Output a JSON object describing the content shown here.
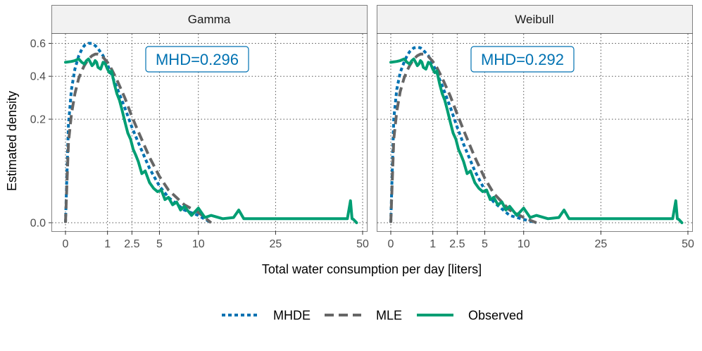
{
  "chart_data": {
    "type": "line",
    "xlabel": "Total water consumption per day [liters]",
    "ylabel": "Estimated density",
    "x_scale": "sqrt",
    "y_scale": "sqrt",
    "xlim": [
      0,
      50
    ],
    "ylim": [
      0,
      0.62
    ],
    "x_ticks": [
      0,
      1,
      2.5,
      5,
      10,
      25,
      50
    ],
    "x_tick_labels": [
      "0",
      "1",
      "2.5",
      "5",
      "10",
      "25",
      "50"
    ],
    "y_ticks": [
      0,
      0.2,
      0.4,
      0.6
    ],
    "y_tick_labels": [
      "0.0",
      "0.2",
      "0.4",
      "0.6"
    ],
    "grid": true,
    "legend_position": "bottom",
    "legend": [
      {
        "key": "mhde",
        "label": "MHDE",
        "color": "#0072B2",
        "dash": "dotted"
      },
      {
        "key": "mle",
        "label": "MLE",
        "color": "#666666",
        "dash": "dashed"
      },
      {
        "key": "obs",
        "label": "Observed",
        "color": "#009E73",
        "dash": "solid"
      }
    ],
    "panels": [
      {
        "title": "Gamma",
        "annotation": "MHD=0.296",
        "annotation_color": "#0072B2",
        "series": [
          {
            "key": "mhde",
            "name": "MHDE",
            "x": [
              0,
              0.005,
              0.02,
              0.05,
              0.1,
              0.15,
              0.2,
              0.3,
              0.4,
              0.5,
              0.6,
              0.8,
              1,
              1.2,
              1.5,
              2,
              2.5,
              3,
              4,
              5,
              6,
              8,
              10,
              12
            ],
            "y": [
              0,
              0.18,
              0.33,
              0.44,
              0.52,
              0.56,
              0.585,
              0.6,
              0.6,
              0.585,
              0.565,
              0.52,
              0.465,
              0.41,
              0.34,
              0.245,
              0.17,
              0.12,
              0.055,
              0.025,
              0.012,
              0.003,
              0.001,
              0
            ]
          },
          {
            "key": "mle",
            "name": "MLE",
            "x": [
              0,
              0.005,
              0.02,
              0.05,
              0.1,
              0.15,
              0.2,
              0.3,
              0.4,
              0.5,
              0.6,
              0.8,
              1,
              1.2,
              1.5,
              2,
              2.5,
              3,
              4,
              5,
              6,
              8,
              10,
              12
            ],
            "y": [
              0,
              0.12,
              0.22,
              0.31,
              0.39,
              0.43,
              0.46,
              0.5,
              0.52,
              0.53,
              0.53,
              0.51,
              0.48,
              0.44,
              0.38,
              0.29,
              0.21,
              0.155,
              0.08,
              0.04,
              0.02,
              0.006,
              0.002,
              0
            ]
          },
          {
            "key": "obs",
            "name": "Observed",
            "x": [
              0,
              0.02,
              0.05,
              0.1,
              0.15,
              0.2,
              0.25,
              0.3,
              0.35,
              0.4,
              0.45,
              0.5,
              0.55,
              0.6,
              0.7,
              0.8,
              0.9,
              1,
              1.1,
              1.2,
              1.35,
              1.5,
              1.65,
              1.8,
              2,
              2.2,
              2.4,
              2.6,
              2.8,
              3,
              3.3,
              3.6,
              4,
              4.4,
              4.8,
              5.2,
              5.6,
              6,
              6.5,
              7,
              7.5,
              8,
              9,
              10,
              11,
              12,
              14,
              16,
              17,
              18,
              20,
              25,
              30,
              35,
              40,
              45,
              46,
              46.5,
              47,
              48
            ],
            "y": [
              0.48,
              0.485,
              0.49,
              0.5,
              0.48,
              0.47,
              0.49,
              0.5,
              0.48,
              0.46,
              0.47,
              0.49,
              0.48,
              0.45,
              0.44,
              0.48,
              0.47,
              0.44,
              0.42,
              0.43,
              0.36,
              0.31,
              0.28,
              0.24,
              0.19,
              0.15,
              0.13,
              0.1,
              0.085,
              0.07,
              0.045,
              0.05,
              0.03,
              0.022,
              0.018,
              0.02,
              0.01,
              0.012,
              0.006,
              0.008,
              0.003,
              0.005,
              0.001,
              0.004,
              0.0005,
              0.001,
              0.0003,
              0.0005,
              0.003,
              0.0003,
              0.0003,
              0.0003,
              0.0003,
              0.0003,
              0.0003,
              0.0003,
              0.009,
              0.0003,
              0.0002,
              0
            ]
          }
        ]
      },
      {
        "title": "Weibull",
        "annotation": "MHD=0.292",
        "annotation_color": "#0072B2",
        "series": [
          {
            "key": "mhde",
            "name": "MHDE",
            "x": [
              0,
              0.005,
              0.02,
              0.05,
              0.1,
              0.15,
              0.2,
              0.3,
              0.4,
              0.5,
              0.6,
              0.8,
              1,
              1.2,
              1.5,
              2,
              2.5,
              3,
              4,
              5,
              6,
              8,
              10,
              12
            ],
            "y": [
              0,
              0.2,
              0.33,
              0.42,
              0.48,
              0.52,
              0.545,
              0.57,
              0.575,
              0.57,
              0.555,
              0.52,
              0.47,
              0.42,
              0.35,
              0.25,
              0.17,
              0.115,
              0.05,
              0.02,
              0.008,
              0.001,
              0.0002,
              0
            ]
          },
          {
            "key": "mle",
            "name": "MLE",
            "x": [
              0,
              0.005,
              0.02,
              0.05,
              0.1,
              0.15,
              0.2,
              0.3,
              0.4,
              0.5,
              0.6,
              0.8,
              1,
              1.2,
              1.5,
              2,
              2.5,
              3,
              4,
              5,
              6,
              8,
              10,
              12
            ],
            "y": [
              0,
              0.13,
              0.23,
              0.32,
              0.39,
              0.43,
              0.46,
              0.5,
              0.52,
              0.53,
              0.53,
              0.515,
              0.485,
              0.45,
              0.39,
              0.3,
              0.22,
              0.16,
              0.08,
              0.037,
              0.016,
              0.003,
              0.0005,
              0
            ]
          },
          {
            "key": "obs",
            "name": "Observed",
            "x": [
              0,
              0.02,
              0.05,
              0.1,
              0.15,
              0.2,
              0.25,
              0.3,
              0.35,
              0.4,
              0.45,
              0.5,
              0.55,
              0.6,
              0.7,
              0.8,
              0.9,
              1,
              1.1,
              1.2,
              1.35,
              1.5,
              1.65,
              1.8,
              2,
              2.2,
              2.4,
              2.6,
              2.8,
              3,
              3.3,
              3.6,
              4,
              4.4,
              4.8,
              5.2,
              5.6,
              6,
              6.5,
              7,
              7.5,
              8,
              9,
              10,
              11,
              12,
              14,
              16,
              17,
              18,
              20,
              25,
              30,
              35,
              40,
              45,
              46,
              46.5,
              47,
              48
            ],
            "y": [
              0.48,
              0.485,
              0.49,
              0.5,
              0.48,
              0.47,
              0.49,
              0.5,
              0.48,
              0.46,
              0.47,
              0.49,
              0.48,
              0.45,
              0.44,
              0.48,
              0.47,
              0.44,
              0.42,
              0.43,
              0.36,
              0.31,
              0.28,
              0.24,
              0.19,
              0.15,
              0.13,
              0.1,
              0.085,
              0.07,
              0.045,
              0.05,
              0.03,
              0.022,
              0.018,
              0.02,
              0.01,
              0.012,
              0.006,
              0.008,
              0.003,
              0.005,
              0.001,
              0.004,
              0.0005,
              0.001,
              0.0003,
              0.0005,
              0.003,
              0.0003,
              0.0003,
              0.0003,
              0.0003,
              0.0003,
              0.0003,
              0.0003,
              0.009,
              0.0003,
              0.0002,
              0
            ]
          }
        ]
      }
    ]
  }
}
